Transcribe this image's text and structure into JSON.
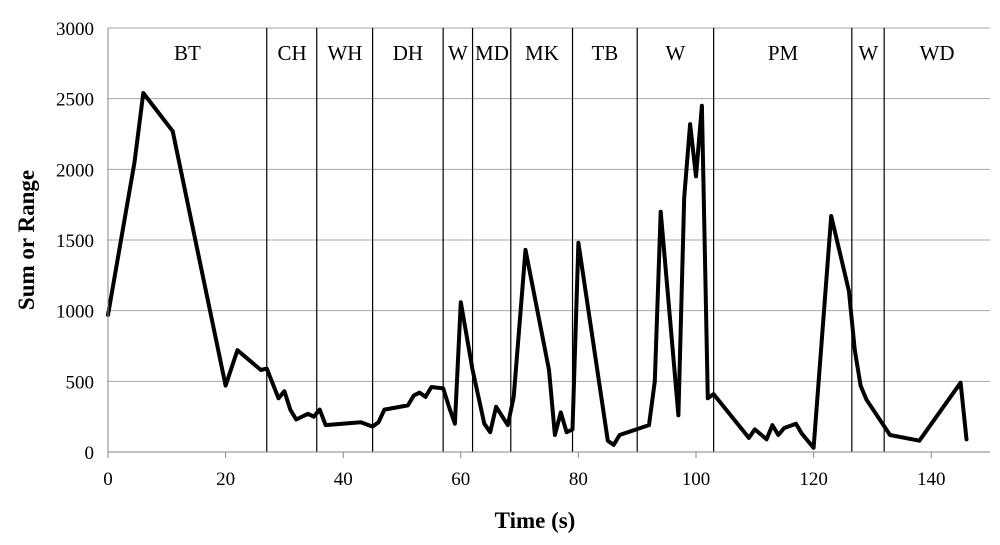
{
  "chart_data": {
    "type": "line",
    "title": "",
    "xlabel": "Time (s)",
    "ylabel": "Sum or Range",
    "xlim": [
      0,
      150
    ],
    "ylim": [
      0,
      3000
    ],
    "xticks": [
      0,
      20,
      40,
      60,
      80,
      100,
      120,
      140
    ],
    "yticks": [
      0,
      500,
      1000,
      1500,
      2000,
      2500,
      3000
    ],
    "grid": "horizontal",
    "colors": {
      "series": "#000000",
      "grid": "#a6a6a6",
      "phase_line": "#000000"
    },
    "phase_boundaries": [
      27,
      35.5,
      45,
      57,
      62,
      68.5,
      79,
      90,
      103,
      126.5,
      132
    ],
    "phases": [
      {
        "label": "BT",
        "x": 13.5
      },
      {
        "label": "CH",
        "x": 31.3
      },
      {
        "label": "WH",
        "x": 40.3
      },
      {
        "label": "DH",
        "x": 51
      },
      {
        "label": "W",
        "x": 59.5
      },
      {
        "label": "MD",
        "x": 65.3
      },
      {
        "label": "MK",
        "x": 73.8
      },
      {
        "label": "TB",
        "x": 84.5
      },
      {
        "label": "W",
        "x": 96.5
      },
      {
        "label": "PM",
        "x": 114.8
      },
      {
        "label": "W",
        "x": 129.3
      },
      {
        "label": "WD",
        "x": 141
      }
    ],
    "series": [
      {
        "x": [
          0,
          4.5,
          6,
          11,
          20,
          22,
          26,
          27,
          29,
          30,
          31,
          32,
          34,
          35,
          36,
          37,
          43,
          45,
          46,
          47,
          51,
          52,
          53,
          54,
          55,
          57,
          58,
          59,
          60,
          62,
          64,
          65,
          66,
          68,
          69,
          71,
          75,
          76,
          77,
          78,
          79,
          80,
          85,
          86,
          87,
          92,
          93,
          94,
          97,
          98,
          99,
          100,
          101,
          102,
          103,
          109,
          110,
          112,
          113,
          114,
          115,
          117,
          118,
          120,
          123,
          126,
          127,
          128,
          129,
          133,
          138,
          145,
          146
        ],
        "y": [
          970,
          2050,
          2540,
          2270,
          470,
          720,
          580,
          590,
          380,
          430,
          300,
          230,
          270,
          250,
          300,
          190,
          210,
          180,
          210,
          300,
          330,
          400,
          420,
          390,
          460,
          450,
          320,
          200,
          1060,
          580,
          200,
          140,
          320,
          190,
          390,
          1430,
          580,
          120,
          280,
          140,
          160,
          1480,
          80,
          50,
          120,
          190,
          500,
          1700,
          260,
          1800,
          2320,
          1950,
          2450,
          380,
          410,
          100,
          160,
          90,
          190,
          120,
          170,
          200,
          130,
          30,
          1670,
          1140,
          720,
          470,
          370,
          120,
          80,
          490,
          90
        ]
      }
    ]
  }
}
